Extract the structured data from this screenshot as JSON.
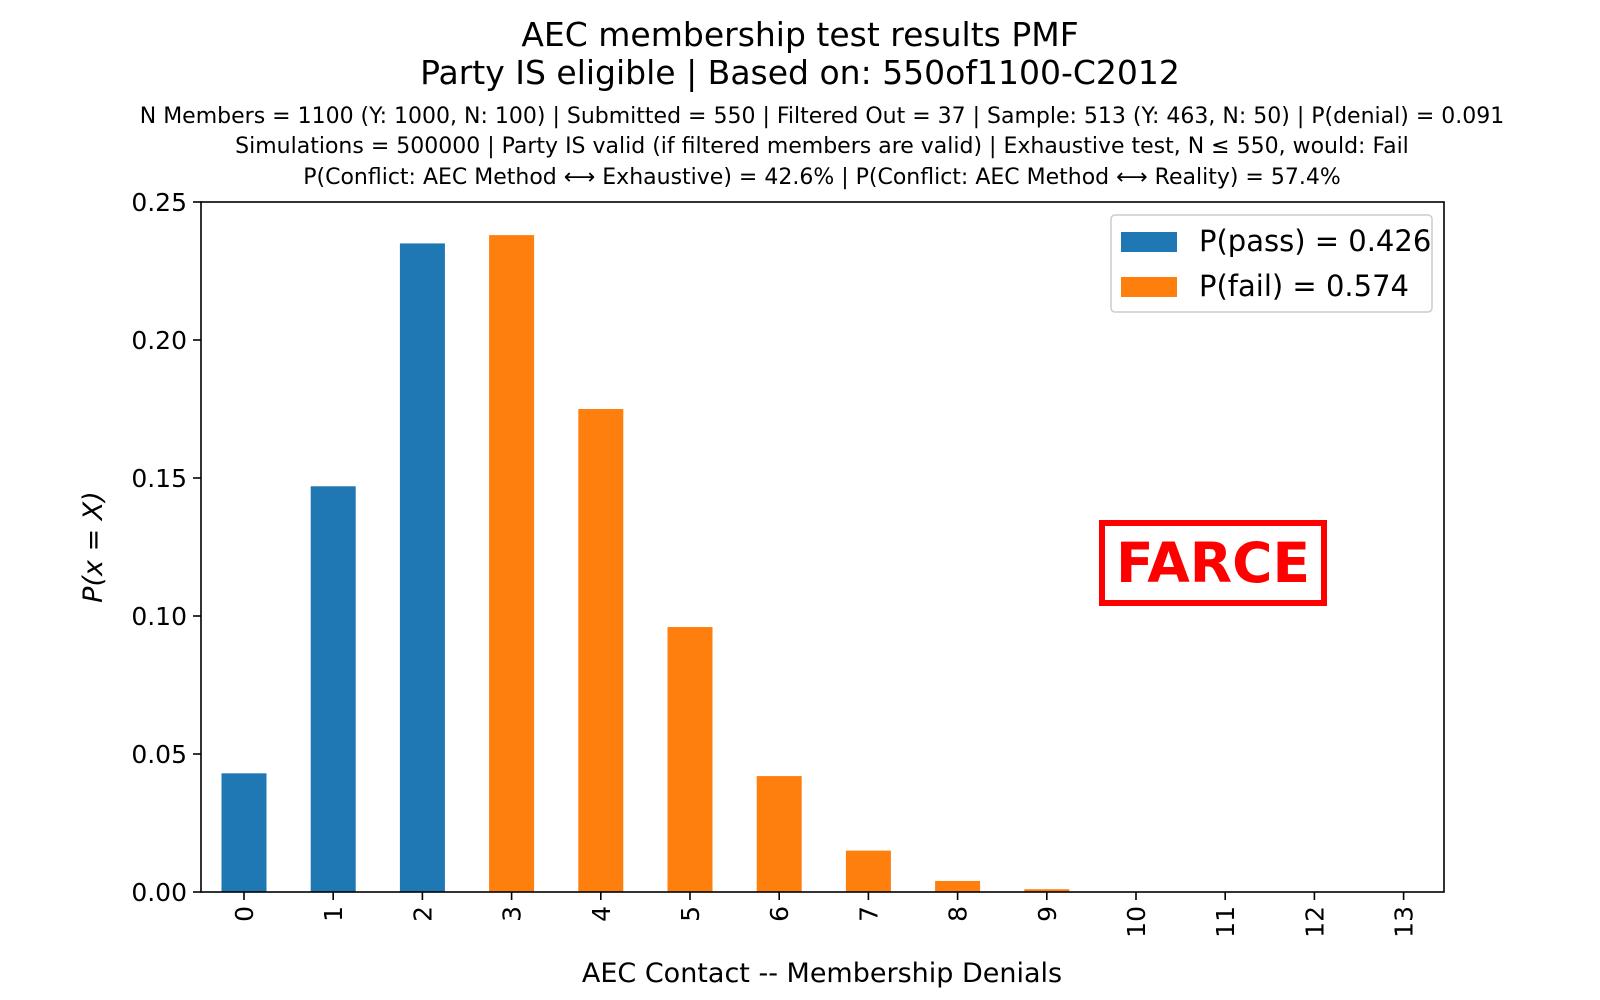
{
  "chart_data": {
    "type": "bar",
    "title": "AEC membership test results PMF",
    "subtitle": "Party IS eligible | Based on: 550of1100-C2012",
    "info_lines": [
      "N Members = 1100 (Y: 1000, N: 100) | Submitted = 550 | Filtered Out = 37 | Sample: 513 (Y: 463, N: 50) | P(denial) = 0.091",
      "Simulations = 500000 | Party IS valid (if filtered members are valid) | Exhaustive test, N ≤ 550, would: Fail",
      "P(Conflict: AEC Method ⟷ Exhaustive) = 42.6% | P(Conflict: AEC Method ⟷ Reality) = 57.4%"
    ],
    "xlabel": "AEC Contact -- Membership Denials",
    "ylabel": "P(x = X)",
    "categories": [
      "0",
      "1",
      "2",
      "3",
      "4",
      "5",
      "6",
      "7",
      "8",
      "9",
      "10",
      "11",
      "12",
      "13"
    ],
    "values": [
      0.043,
      0.147,
      0.235,
      0.238,
      0.175,
      0.096,
      0.042,
      0.015,
      0.004,
      0.001,
      0.0001,
      0.0,
      0.0,
      0.0
    ],
    "pass_count": 3,
    "ylim": [
      0,
      0.25
    ],
    "yticks": [
      "0.00",
      "0.05",
      "0.10",
      "0.15",
      "0.20",
      "0.25"
    ],
    "grid": false,
    "legend_position": "top-right",
    "series": [
      {
        "name": "P(pass) = 0.426",
        "color": "#1f77b4"
      },
      {
        "name": "P(fail) = 0.574",
        "color": "#ff7f0e"
      }
    ],
    "annotation": {
      "text": "FARCE",
      "color": "#ff0000"
    }
  }
}
